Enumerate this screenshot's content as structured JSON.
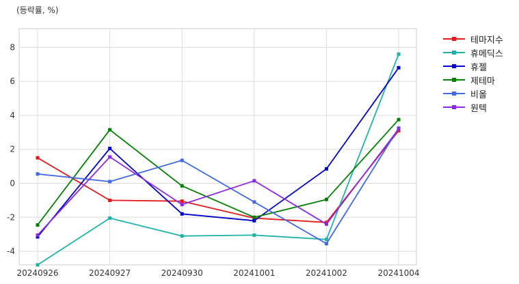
{
  "chart_data": {
    "type": "line",
    "unit_label": "(등락률, %)",
    "xlabel": "",
    "ylabel": "",
    "categories": [
      "20240926",
      "20240927",
      "20240930",
      "20241001",
      "20241002",
      "20241004"
    ],
    "ylim": [
      -4.8,
      9.1
    ],
    "yticks": [
      -4,
      -2,
      0,
      2,
      4,
      6,
      8
    ],
    "grid": true,
    "legend_position": "outside-top-right",
    "series": [
      {
        "name": "테마지수",
        "color": "#e31a1c",
        "values": [
          1.5,
          -1.0,
          -1.05,
          -2.05,
          -2.3,
          3.1
        ]
      },
      {
        "name": "휴메딕스",
        "color": "#20b2aa",
        "values": [
          -4.8,
          -2.05,
          -3.1,
          -3.05,
          -3.3,
          7.6
        ]
      },
      {
        "name": "휴젤",
        "color": "#0000cd",
        "values": [
          -3.15,
          2.05,
          -1.8,
          -2.2,
          0.85,
          6.8
        ]
      },
      {
        "name": "제테마",
        "color": "#008000",
        "values": [
          -2.45,
          3.15,
          -0.15,
          -2.0,
          -0.95,
          3.75
        ]
      },
      {
        "name": "비올",
        "color": "#4169e1",
        "values": [
          0.55,
          0.1,
          1.35,
          -1.1,
          -3.55,
          3.25
        ]
      },
      {
        "name": "원텍",
        "color": "#8a2be2",
        "values": [
          -3.05,
          1.55,
          -1.25,
          0.15,
          -2.4,
          3.2
        ]
      }
    ]
  }
}
